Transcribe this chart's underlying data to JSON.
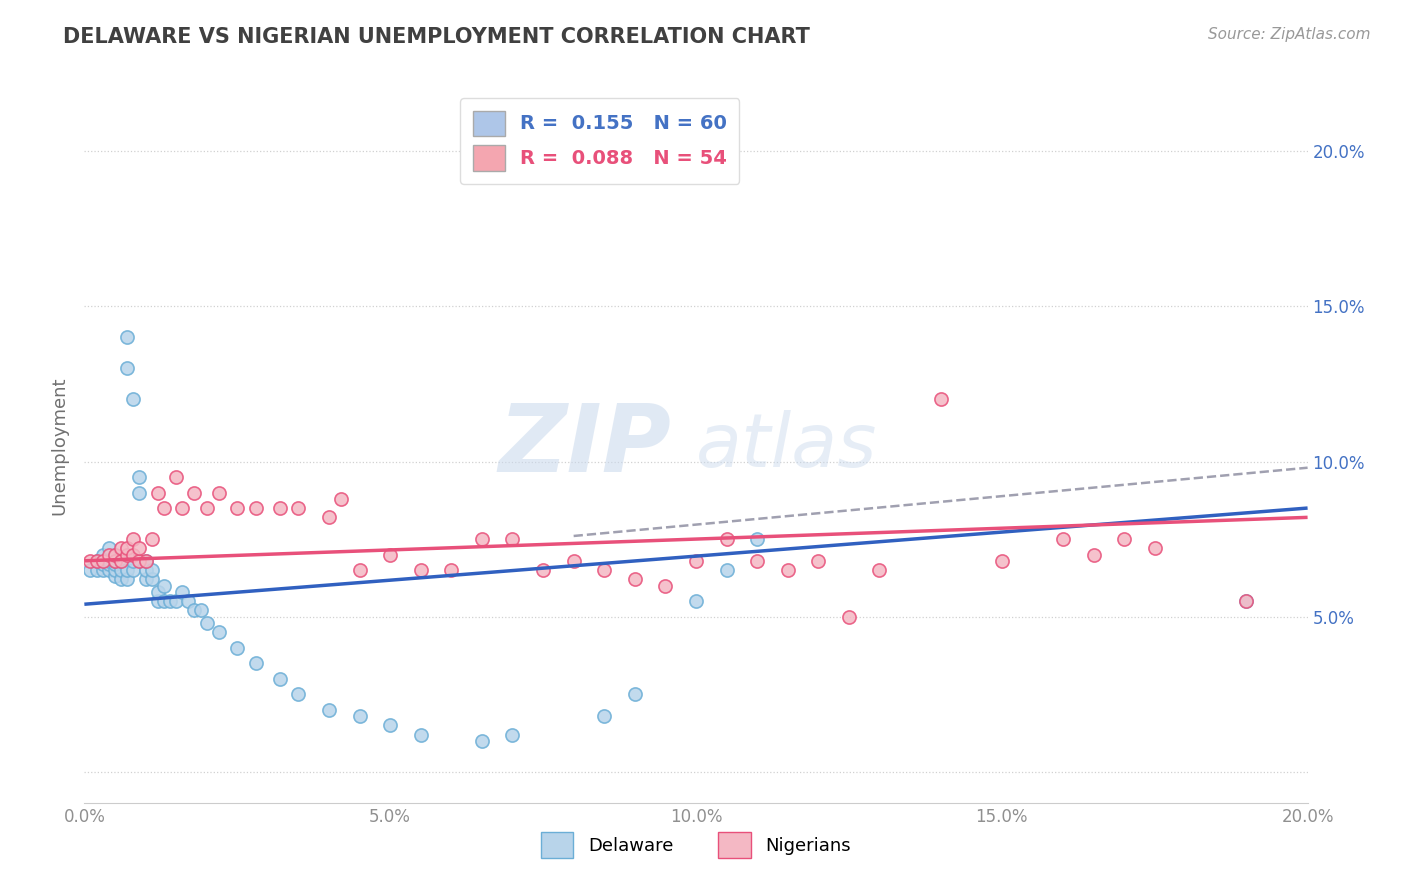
{
  "title": "DELAWARE VS NIGERIAN UNEMPLOYMENT CORRELATION CHART",
  "source": "Source: ZipAtlas.com",
  "ylabel": "Unemployment",
  "xlim": [
    0.0,
    0.2
  ],
  "ylim": [
    -0.01,
    0.22
  ],
  "yticks": [
    0.0,
    0.05,
    0.1,
    0.15,
    0.2
  ],
  "ytick_labels": [
    "",
    "5.0%",
    "10.0%",
    "15.0%",
    "20.0%"
  ],
  "xticks": [
    0.0,
    0.05,
    0.1,
    0.15,
    0.2
  ],
  "xtick_labels": [
    "0.0%",
    "5.0%",
    "10.0%",
    "15.0%",
    "20.0%"
  ],
  "watermark_zip": "ZIP",
  "watermark_atlas": "atlas",
  "legend_entries": [
    {
      "label": "R =  0.155   N = 60",
      "color": "#aec6e8",
      "text_color": "#4472c4"
    },
    {
      "label": "R =  0.088   N = 54",
      "color": "#f4a6b0",
      "text_color": "#e8507a"
    }
  ],
  "delaware_scatter": {
    "x": [
      0.001,
      0.002,
      0.002,
      0.003,
      0.003,
      0.003,
      0.004,
      0.004,
      0.004,
      0.004,
      0.005,
      0.005,
      0.005,
      0.005,
      0.005,
      0.006,
      0.006,
      0.006,
      0.007,
      0.007,
      0.007,
      0.007,
      0.008,
      0.008,
      0.008,
      0.009,
      0.009,
      0.01,
      0.01,
      0.01,
      0.011,
      0.011,
      0.012,
      0.012,
      0.013,
      0.013,
      0.014,
      0.015,
      0.016,
      0.017,
      0.018,
      0.019,
      0.02,
      0.022,
      0.025,
      0.028,
      0.032,
      0.035,
      0.04,
      0.045,
      0.05,
      0.055,
      0.065,
      0.07,
      0.085,
      0.09,
      0.1,
      0.105,
      0.11,
      0.19
    ],
    "y": [
      0.065,
      0.065,
      0.068,
      0.065,
      0.067,
      0.07,
      0.065,
      0.067,
      0.068,
      0.072,
      0.063,
      0.065,
      0.067,
      0.068,
      0.07,
      0.062,
      0.065,
      0.068,
      0.062,
      0.065,
      0.14,
      0.13,
      0.12,
      0.065,
      0.068,
      0.09,
      0.095,
      0.062,
      0.065,
      0.068,
      0.062,
      0.065,
      0.055,
      0.058,
      0.055,
      0.06,
      0.055,
      0.055,
      0.058,
      0.055,
      0.052,
      0.052,
      0.048,
      0.045,
      0.04,
      0.035,
      0.03,
      0.025,
      0.02,
      0.018,
      0.015,
      0.012,
      0.01,
      0.012,
      0.018,
      0.025,
      0.055,
      0.065,
      0.075,
      0.055
    ],
    "color": "#b8d4ea",
    "edgecolor": "#6baed6",
    "size": 90
  },
  "nigerian_scatter": {
    "x": [
      0.001,
      0.002,
      0.003,
      0.004,
      0.005,
      0.005,
      0.006,
      0.006,
      0.007,
      0.007,
      0.008,
      0.008,
      0.009,
      0.009,
      0.01,
      0.011,
      0.012,
      0.013,
      0.015,
      0.016,
      0.018,
      0.02,
      0.022,
      0.025,
      0.028,
      0.032,
      0.035,
      0.04,
      0.042,
      0.045,
      0.05,
      0.055,
      0.06,
      0.065,
      0.07,
      0.075,
      0.08,
      0.085,
      0.09,
      0.095,
      0.1,
      0.105,
      0.11,
      0.115,
      0.12,
      0.125,
      0.13,
      0.14,
      0.15,
      0.16,
      0.165,
      0.17,
      0.175,
      0.19
    ],
    "y": [
      0.068,
      0.068,
      0.068,
      0.07,
      0.068,
      0.07,
      0.068,
      0.072,
      0.07,
      0.072,
      0.07,
      0.075,
      0.068,
      0.072,
      0.068,
      0.075,
      0.09,
      0.085,
      0.095,
      0.085,
      0.09,
      0.085,
      0.09,
      0.085,
      0.085,
      0.085,
      0.085,
      0.082,
      0.088,
      0.065,
      0.07,
      0.065,
      0.065,
      0.075,
      0.075,
      0.065,
      0.068,
      0.065,
      0.062,
      0.06,
      0.068,
      0.075,
      0.068,
      0.065,
      0.068,
      0.05,
      0.065,
      0.12,
      0.068,
      0.075,
      0.07,
      0.075,
      0.072,
      0.055
    ],
    "color": "#f4b8c4",
    "edgecolor": "#e8507a",
    "size": 90
  },
  "delaware_line": {
    "color": "#3060c0",
    "linewidth": 2.5,
    "x0": 0.0,
    "y0": 0.054,
    "x1": 0.2,
    "y1": 0.085
  },
  "nigerian_line": {
    "color": "#e8507a",
    "linewidth": 2.5,
    "x0": 0.0,
    "y0": 0.068,
    "x1": 0.2,
    "y1": 0.082
  },
  "dashed_line": {
    "color": "#a0a0b0",
    "linewidth": 1.8,
    "linestyle": "--",
    "x0": 0.08,
    "y0": 0.076,
    "x1": 0.2,
    "y1": 0.098
  },
  "background_color": "#ffffff",
  "grid_color": "#cccccc",
  "title_color": "#404040",
  "axis_label_color": "#707070",
  "tick_color": "#909090"
}
